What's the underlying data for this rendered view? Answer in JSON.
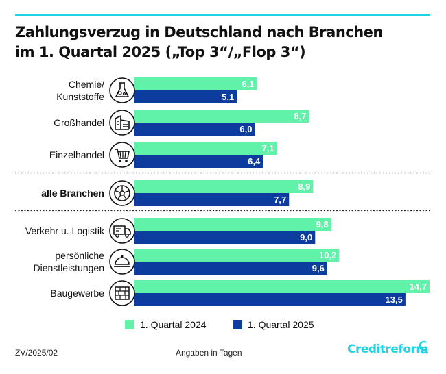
{
  "title": {
    "line1": "Zahlungsverzug in Deutschland nach Branchen",
    "line2": "im 1. Quartal 2025 („Top 3“/„Flop 3“)"
  },
  "chart_data": {
    "type": "bar",
    "orientation": "horizontal",
    "unit_note": "Angaben in Tagen",
    "xlim": [
      0,
      14.7
    ],
    "categories": [
      {
        "label": [
          "Chemie/",
          "Kunststoffe"
        ],
        "icon": "flask-icon",
        "bold": false
      },
      {
        "label": [
          "Großhandel"
        ],
        "icon": "warehouse-icon",
        "bold": false
      },
      {
        "label": [
          "Einzelhandel"
        ],
        "icon": "shopping-cart-icon",
        "bold": false
      },
      {
        "label": [
          "alle Branchen"
        ],
        "icon": "wheel-icon",
        "bold": true
      },
      {
        "label": [
          "Verkehr u. Logistik"
        ],
        "icon": "truck-icon",
        "bold": false
      },
      {
        "label": [
          "persönliche",
          "Dienstleistungen"
        ],
        "icon": "cloche-icon",
        "bold": false
      },
      {
        "label": [
          "Baugewerbe"
        ],
        "icon": "brick-wall-icon",
        "bold": false
      }
    ],
    "series": [
      {
        "name": "1. Quartal 2024",
        "color": "#5ff2a8",
        "values": [
          6.1,
          8.7,
          7.1,
          8.9,
          9.8,
          10.2,
          14.7
        ],
        "labels": [
          "6,1",
          "8,7",
          "7,1",
          "8,9",
          "9,8",
          "10,2",
          "14,7"
        ]
      },
      {
        "name": "1. Quartal 2025",
        "color": "#0c3c9e",
        "values": [
          5.1,
          6.0,
          6.4,
          7.7,
          9.0,
          9.6,
          13.5
        ],
        "labels": [
          "5,1",
          "6,0",
          "6,4",
          "7,7",
          "9,0",
          "9,6",
          "13,5"
        ]
      }
    ],
    "separators_after": [
      2,
      3
    ],
    "legend_position": "bottom"
  },
  "footer": {
    "code": "ZV/2025/02",
    "note": "Angaben in Tagen",
    "brand": "Creditreform"
  },
  "colors": {
    "accent": "#22d3e6",
    "series_2024": "#5ff2a8",
    "series_2025": "#0c3c9e"
  }
}
